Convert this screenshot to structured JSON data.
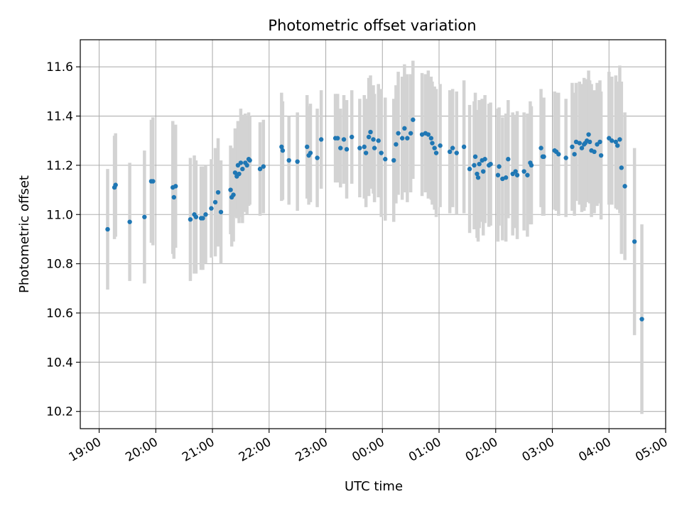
{
  "chart_data": {
    "type": "scatter",
    "title": "Photometric offset variation",
    "xlabel": "UTC time",
    "ylabel": "Photometric offset",
    "x_unit": "hours since 19:00 UTC",
    "xlim": [
      -0.333,
      10.0
    ],
    "ylim": [
      10.13,
      11.71
    ],
    "xticks": [
      {
        "value": 0,
        "label": "19:00"
      },
      {
        "value": 1,
        "label": "20:00"
      },
      {
        "value": 2,
        "label": "21:00"
      },
      {
        "value": 3,
        "label": "22:00"
      },
      {
        "value": 4,
        "label": "23:00"
      },
      {
        "value": 5,
        "label": "00:00"
      },
      {
        "value": 6,
        "label": "01:00"
      },
      {
        "value": 7,
        "label": "02:00"
      },
      {
        "value": 8,
        "label": "03:00"
      },
      {
        "value": 9,
        "label": "04:00"
      },
      {
        "value": 10,
        "label": "05:00"
      }
    ],
    "yticks": [
      {
        "value": 10.2,
        "label": "10.2"
      },
      {
        "value": 10.4,
        "label": "10.4"
      },
      {
        "value": 10.6,
        "label": "10.6"
      },
      {
        "value": 10.8,
        "label": "10.8"
      },
      {
        "value": 11.0,
        "label": "11.0"
      },
      {
        "value": 11.2,
        "label": "11.2"
      },
      {
        "value": 11.4,
        "label": "11.4"
      },
      {
        "value": 11.6,
        "label": "11.6"
      }
    ],
    "grid": true,
    "colors": {
      "points": "#1f77b4",
      "errorbars": "#d3d3d3",
      "grid": "#b0b0b0"
    },
    "series": [
      {
        "points": [
          [
            0.15,
            10.94,
            0.245
          ],
          [
            0.27,
            11.11,
            0.21
          ],
          [
            0.29,
            11.12,
            0.21
          ],
          [
            0.54,
            10.97,
            0.24
          ],
          [
            0.8,
            10.99,
            0.27
          ],
          [
            0.92,
            11.135,
            0.25
          ],
          [
            0.95,
            11.135,
            0.26
          ],
          [
            1.3,
            11.11,
            0.27
          ],
          [
            1.32,
            11.07,
            0.25
          ],
          [
            1.35,
            11.115,
            0.25
          ],
          [
            1.61,
            10.98,
            0.25
          ],
          [
            1.68,
            11.0,
            0.24
          ],
          [
            1.71,
            10.99,
            0.23
          ],
          [
            1.8,
            10.985,
            0.21
          ],
          [
            1.83,
            10.985,
            0.21
          ],
          [
            1.88,
            11.0,
            0.2
          ],
          [
            1.98,
            11.025,
            0.2
          ],
          [
            2.05,
            11.05,
            0.22
          ],
          [
            2.1,
            11.09,
            0.22
          ],
          [
            2.15,
            11.01,
            0.21
          ],
          [
            2.32,
            11.1,
            0.18
          ],
          [
            2.34,
            11.07,
            0.2
          ],
          [
            2.37,
            11.08,
            0.19
          ],
          [
            2.4,
            11.17,
            0.18
          ],
          [
            2.43,
            11.155,
            0.17
          ],
          [
            2.45,
            11.2,
            0.18
          ],
          [
            2.47,
            11.165,
            0.2
          ],
          [
            2.5,
            11.21,
            0.22
          ],
          [
            2.53,
            11.185,
            0.22
          ],
          [
            2.58,
            11.21,
            0.2
          ],
          [
            2.61,
            11.2,
            0.2
          ],
          [
            2.64,
            11.225,
            0.19
          ],
          [
            2.66,
            11.22,
            0.18
          ],
          [
            2.84,
            11.185,
            0.19
          ],
          [
            2.9,
            11.195,
            0.19
          ],
          [
            3.22,
            11.275,
            0.22
          ],
          [
            3.24,
            11.26,
            0.2
          ],
          [
            3.35,
            11.22,
            0.18
          ],
          [
            3.5,
            11.215,
            0.2
          ],
          [
            3.67,
            11.275,
            0.21
          ],
          [
            3.7,
            11.24,
            0.2
          ],
          [
            3.73,
            11.25,
            0.2
          ],
          [
            3.85,
            11.23,
            0.2
          ],
          [
            3.92,
            11.305,
            0.2
          ],
          [
            4.17,
            11.31,
            0.18
          ],
          [
            4.21,
            11.31,
            0.18
          ],
          [
            4.26,
            11.27,
            0.16
          ],
          [
            4.32,
            11.305,
            0.18
          ],
          [
            4.37,
            11.265,
            0.2
          ],
          [
            4.46,
            11.315,
            0.19
          ],
          [
            4.6,
            11.27,
            0.2
          ],
          [
            4.68,
            11.275,
            0.21
          ],
          [
            4.71,
            11.25,
            0.22
          ],
          [
            4.76,
            11.315,
            0.24
          ],
          [
            4.79,
            11.335,
            0.23
          ],
          [
            4.84,
            11.305,
            0.22
          ],
          [
            4.86,
            11.27,
            0.22
          ],
          [
            4.93,
            11.3,
            0.23
          ],
          [
            4.98,
            11.25,
            0.26
          ],
          [
            5.05,
            11.225,
            0.25
          ],
          [
            5.2,
            11.22,
            0.25
          ],
          [
            5.24,
            11.285,
            0.24
          ],
          [
            5.28,
            11.33,
            0.25
          ],
          [
            5.35,
            11.31,
            0.25
          ],
          [
            5.39,
            11.35,
            0.26
          ],
          [
            5.44,
            11.31,
            0.26
          ],
          [
            5.5,
            11.33,
            0.24
          ],
          [
            5.54,
            11.385,
            0.24
          ],
          [
            5.7,
            11.325,
            0.25
          ],
          [
            5.76,
            11.33,
            0.24
          ],
          [
            5.81,
            11.325,
            0.26
          ],
          [
            5.86,
            11.31,
            0.25
          ],
          [
            5.88,
            11.29,
            0.25
          ],
          [
            5.92,
            11.27,
            0.25
          ],
          [
            5.95,
            11.25,
            0.26
          ],
          [
            6.02,
            11.28,
            0.25
          ],
          [
            6.19,
            11.255,
            0.25
          ],
          [
            6.24,
            11.27,
            0.24
          ],
          [
            6.31,
            11.25,
            0.25
          ],
          [
            6.44,
            11.275,
            0.27
          ],
          [
            6.54,
            11.185,
            0.26
          ],
          [
            6.62,
            11.2,
            0.26
          ],
          [
            6.64,
            11.235,
            0.26
          ],
          [
            6.67,
            11.165,
            0.26
          ],
          [
            6.69,
            11.15,
            0.26
          ],
          [
            6.71,
            11.205,
            0.26
          ],
          [
            6.76,
            11.22,
            0.25
          ],
          [
            6.78,
            11.175,
            0.26
          ],
          [
            6.81,
            11.225,
            0.26
          ],
          [
            6.88,
            11.2,
            0.25
          ],
          [
            6.91,
            11.205,
            0.25
          ],
          [
            7.04,
            11.16,
            0.27
          ],
          [
            7.06,
            11.195,
            0.24
          ],
          [
            7.12,
            11.145,
            0.25
          ],
          [
            7.18,
            11.15,
            0.26
          ],
          [
            7.22,
            11.225,
            0.24
          ],
          [
            7.3,
            11.165,
            0.25
          ],
          [
            7.35,
            11.175,
            0.23
          ],
          [
            7.38,
            11.16,
            0.26
          ],
          [
            7.5,
            11.175,
            0.24
          ],
          [
            7.56,
            11.16,
            0.25
          ],
          [
            7.61,
            11.21,
            0.25
          ],
          [
            7.63,
            11.2,
            0.24
          ],
          [
            7.8,
            11.27,
            0.24
          ],
          [
            7.83,
            11.235,
            0.24
          ],
          [
            7.85,
            11.235,
            0.24
          ],
          [
            8.04,
            11.26,
            0.24
          ],
          [
            8.07,
            11.255,
            0.24
          ],
          [
            8.11,
            11.245,
            0.25
          ],
          [
            8.24,
            11.23,
            0.24
          ],
          [
            8.35,
            11.275,
            0.26
          ],
          [
            8.39,
            11.245,
            0.25
          ],
          [
            8.42,
            11.295,
            0.24
          ],
          [
            8.48,
            11.29,
            0.25
          ],
          [
            8.52,
            11.27,
            0.26
          ],
          [
            8.56,
            11.285,
            0.27
          ],
          [
            8.58,
            11.29,
            0.26
          ],
          [
            8.61,
            11.3,
            0.25
          ],
          [
            8.64,
            11.325,
            0.26
          ],
          [
            8.66,
            11.295,
            0.25
          ],
          [
            8.69,
            11.26,
            0.27
          ],
          [
            8.74,
            11.255,
            0.25
          ],
          [
            8.79,
            11.285,
            0.25
          ],
          [
            8.84,
            11.295,
            0.25
          ],
          [
            8.86,
            11.24,
            0.26
          ],
          [
            9.0,
            11.31,
            0.27
          ],
          [
            9.05,
            11.3,
            0.26
          ],
          [
            9.12,
            11.295,
            0.27
          ],
          [
            9.15,
            11.28,
            0.26
          ],
          [
            9.19,
            11.305,
            0.3
          ],
          [
            9.22,
            11.19,
            0.35
          ],
          [
            9.28,
            11.115,
            0.3
          ],
          [
            9.45,
            10.89,
            0.38
          ],
          [
            9.58,
            10.575,
            0.385
          ]
        ]
      }
    ]
  }
}
